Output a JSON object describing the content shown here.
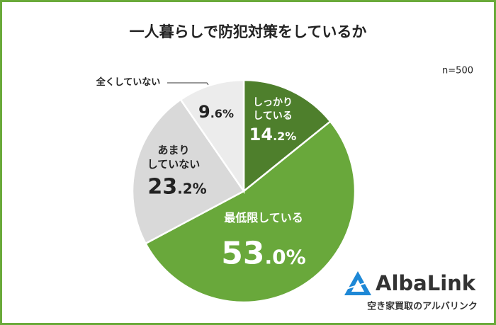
{
  "chart_data": {
    "type": "pie",
    "title": "一人暮らしで防犯対策をしているか",
    "note": "n=500",
    "categories": [
      "しっかり\nしている",
      "最低限している",
      "あまり\nしていない",
      "全くしていない"
    ],
    "values": [
      14.2,
      53.0,
      23.2,
      9.6
    ],
    "value_labels": [
      "14.2%",
      "53.0%",
      "23.2%",
      "9.6%"
    ],
    "colors": [
      "#4e7f2c",
      "#69a83b",
      "#d9d9d9",
      "#ececec"
    ]
  },
  "logo": {
    "name": "AlbaLink",
    "tagline": "空き家買取のアルバリンク"
  }
}
